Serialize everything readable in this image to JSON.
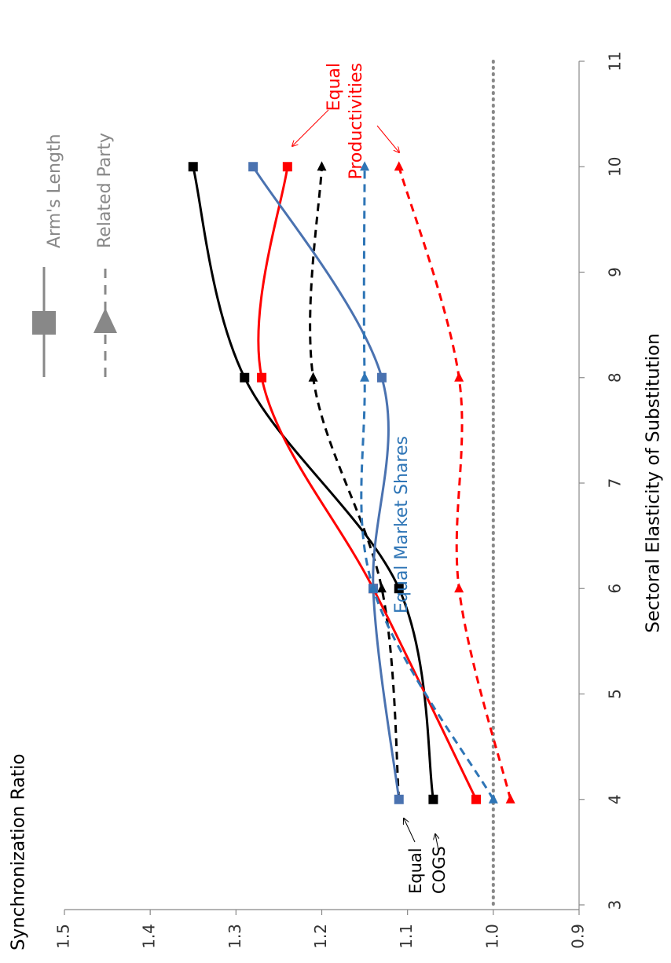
{
  "chart_data": {
    "type": "line",
    "orientation": "rotated-90",
    "title": "Synchronization Ratio",
    "xlabel": "Sectoral Elasticity of Substitution",
    "ylabel": "",
    "xlim": [
      3,
      11
    ],
    "ylim": [
      0.9,
      1.5
    ],
    "x_ticks": [
      "3",
      "4",
      "5",
      "6",
      "7",
      "8",
      "9",
      "10",
      "11"
    ],
    "y_ticks": [
      "0.9",
      "1.0",
      "1.1",
      "1.2",
      "1.3",
      "1.4",
      "1.5"
    ],
    "reference_line": {
      "value": 1.0,
      "style": "dotted",
      "color": "#888888"
    },
    "grid": false,
    "legend": {
      "placement": "top-right",
      "entries": [
        {
          "label": "Arm's Length",
          "style": "solid",
          "marker": "square",
          "color": "#888888"
        },
        {
          "label": "Related Party",
          "style": "dashed",
          "marker": "triangle",
          "color": "#888888"
        }
      ]
    },
    "annotations": [
      {
        "text": "Equal Productivities",
        "color": "#ff0000"
      },
      {
        "text": "Equal Market Shares",
        "color": "#2e75b6"
      },
      {
        "text": "Equal COGS",
        "color": "#000000"
      }
    ],
    "x": [
      4,
      6,
      8,
      10
    ],
    "series": [
      {
        "group": "Equal COGS",
        "style": "solid",
        "marker": "square",
        "color": "#000000",
        "values": [
          1.07,
          1.11,
          1.29,
          1.35
        ]
      },
      {
        "group": "Equal COGS",
        "style": "dashed",
        "marker": "triangle",
        "color": "#000000",
        "values": [
          1.11,
          1.13,
          1.21,
          1.2
        ]
      },
      {
        "group": "Equal Productivities",
        "style": "solid",
        "marker": "square",
        "color": "#ff0000",
        "values": [
          1.02,
          1.14,
          1.27,
          1.24
        ]
      },
      {
        "group": "Equal Productivities",
        "style": "dashed",
        "marker": "triangle",
        "color": "#ff0000",
        "values": [
          0.98,
          1.04,
          1.04,
          1.11
        ]
      },
      {
        "group": "Equal Market Shares",
        "style": "solid",
        "marker": "square",
        "color": "#4a72b0",
        "values": [
          1.11,
          1.14,
          1.13,
          1.28
        ]
      },
      {
        "group": "Equal Market Shares",
        "style": "dashed",
        "marker": "triangle",
        "color": "#2e75b6",
        "values": [
          1.0,
          1.14,
          1.15,
          1.15
        ]
      }
    ]
  }
}
